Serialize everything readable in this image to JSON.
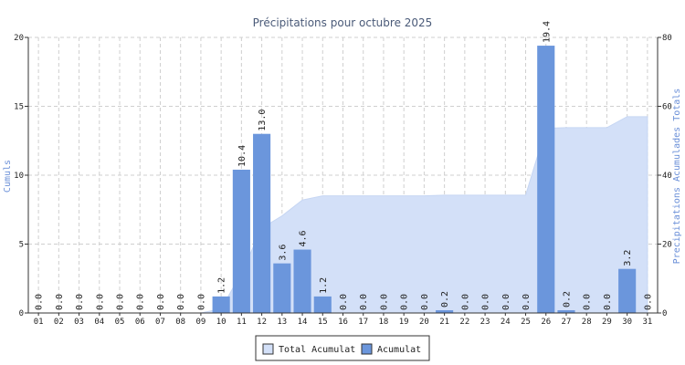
{
  "chart_data": {
    "type": "bar",
    "title": "Précipitations pour octubre 2025",
    "ylabel": "Cumuls",
    "y2label": "Precipitations Acumulades Totals",
    "ylim": [
      0,
      20
    ],
    "y2lim": [
      0,
      80
    ],
    "yticks": [
      "0",
      "5",
      "10",
      "15",
      "20"
    ],
    "y2ticks": [
      "0",
      "20",
      "40",
      "60",
      "80"
    ],
    "grid": true,
    "legend_position": "bottom",
    "categories": [
      "01",
      "02",
      "03",
      "04",
      "05",
      "06",
      "07",
      "08",
      "09",
      "10",
      "11",
      "12",
      "13",
      "14",
      "15",
      "16",
      "17",
      "18",
      "19",
      "20",
      "21",
      "22",
      "23",
      "24",
      "25",
      "26",
      "27",
      "28",
      "29",
      "30",
      "31"
    ],
    "data_labels": [
      "0.0",
      "0.0",
      "0.0",
      "0.0",
      "0.0",
      "0.0",
      "0.0",
      "0.0",
      "0.0",
      "1.2",
      "10.4",
      "13.0",
      "3.6",
      "4.6",
      "1.2",
      "0.0",
      "0.0",
      "0.0",
      "0.0",
      "0.0",
      "0.2",
      "0.0",
      "0.0",
      "0.0",
      "0.0",
      "19.4",
      "0.2",
      "0.0",
      "0.0",
      "3.2",
      "0.0"
    ],
    "series": [
      {
        "name": "Total Acumulat",
        "type": "area",
        "axis": "right",
        "color": "#d3e0f8",
        "values": [
          0,
          0,
          0,
          0,
          0,
          0,
          0,
          0,
          0,
          1.2,
          11.6,
          24.6,
          28.2,
          32.8,
          34.0,
          34.0,
          34.0,
          34.0,
          34.0,
          34.0,
          34.2,
          34.2,
          34.2,
          34.2,
          34.2,
          53.6,
          53.8,
          53.8,
          53.8,
          57.0,
          57.0
        ]
      },
      {
        "name": "Acumulat",
        "type": "bar",
        "axis": "left",
        "color": "#6b96dc",
        "values": [
          0,
          0,
          0,
          0,
          0,
          0,
          0,
          0,
          0,
          1.2,
          10.4,
          13.0,
          3.6,
          4.6,
          1.2,
          0,
          0,
          0,
          0,
          0,
          0.2,
          0,
          0,
          0,
          0,
          19.4,
          0.2,
          0,
          0,
          3.2,
          0
        ]
      }
    ]
  }
}
